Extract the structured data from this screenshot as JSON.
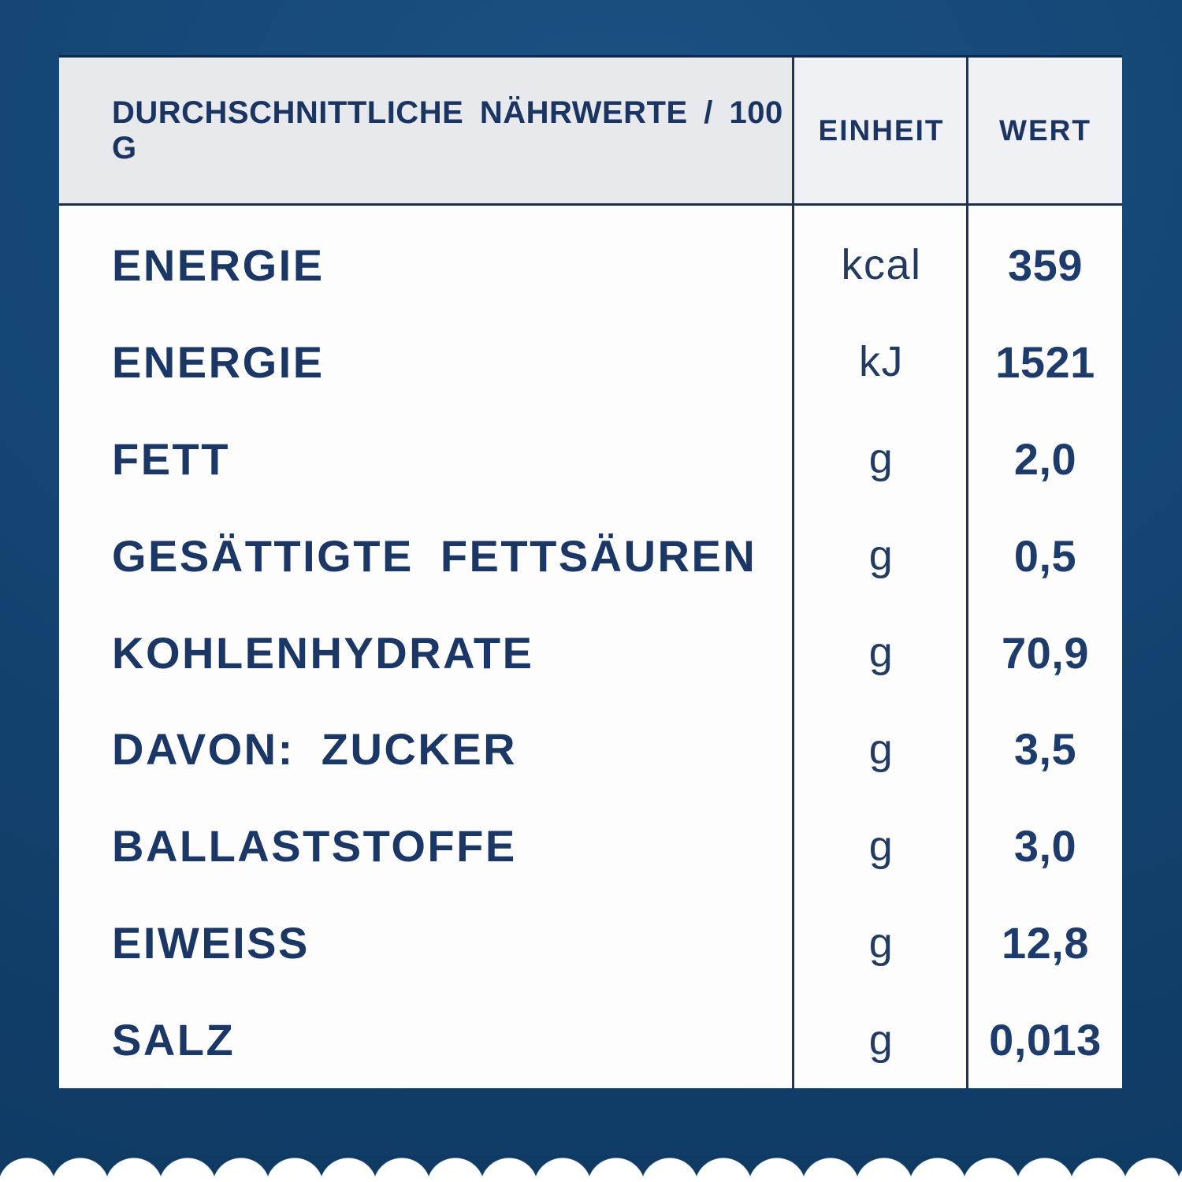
{
  "table": {
    "header": {
      "nutrients_label": "DURCHSCHNITTLICHE NÄHRWERTE / 100 G",
      "unit_label": "EINHEIT",
      "value_label": "WERT"
    },
    "rows": [
      {
        "label": "ENERGIE",
        "unit": "kcal",
        "value": "359"
      },
      {
        "label": "ENERGIE",
        "unit": "kJ",
        "value": "1521"
      },
      {
        "label": "FETT",
        "unit": "g",
        "value": "2,0"
      },
      {
        "label": "GESÄTTIGTE FETTSÄUREN",
        "unit": "g",
        "value": "0,5"
      },
      {
        "label": "KOHLENHYDRATE",
        "unit": "g",
        "value": "70,9"
      },
      {
        "label": "DAVON: ZUCKER",
        "unit": "g",
        "value": "3,5"
      },
      {
        "label": "BALLASTSTOFFE",
        "unit": "g",
        "value": "3,0"
      },
      {
        "label": "EIWEISS",
        "unit": "g",
        "value": "12,8"
      },
      {
        "label": "SALZ",
        "unit": "g",
        "value": "0,013"
      }
    ]
  },
  "colors": {
    "background_navy": "#123f6b",
    "background_navy_light": "#1b5183",
    "background_navy_dark": "#0f3a63",
    "panel_white": "#fdfdfe",
    "header_gray": "#e7e9ed",
    "header_gray_light": "#eff1f5",
    "text_navy": "#1a3765",
    "divider_navy": "#22344e"
  }
}
